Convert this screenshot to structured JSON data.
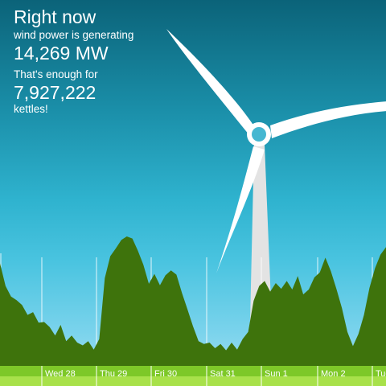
{
  "headline": "Right now",
  "generating_label": "wind power is generating",
  "generation_value": "14,269 MW",
  "kettles_intro": "That's enough for",
  "kettles_count": "7,927,222",
  "kettles_label": "kettles!",
  "colors": {
    "sky_top": "#0b6379",
    "sky_bottom": "#a8e2f3",
    "generation_area": "#3e730c",
    "ground": "#7dc828",
    "turbine": "#ffffff"
  },
  "chart_data": {
    "type": "area",
    "days": [
      "Wed 28",
      "Thu 29",
      "Fri 30",
      "Sat 31",
      "Sun 1",
      "Mon 2",
      "Tue"
    ],
    "unit": "MW",
    "ylim": [
      0,
      25000
    ],
    "series": [
      {
        "values": [
          14500,
          11300,
          9800,
          9300,
          8600,
          7200,
          7600,
          6100,
          6200,
          5500,
          4300,
          5800,
          3500,
          4300,
          3300,
          2900,
          3500,
          2300,
          3800,
          12400,
          15500,
          16600,
          17800,
          18300,
          18000,
          16300,
          14300,
          11600,
          13000,
          11400,
          12800,
          13500,
          12900,
          10300,
          8000,
          5600,
          3500,
          3100,
          3300,
          2500,
          3100,
          2200,
          3300,
          2300,
          3800,
          4800,
          9200,
          11300,
          12000,
          10500,
          11700,
          10900,
          12000,
          10800,
          12700,
          10100,
          10800,
          12500,
          13200,
          15300,
          13400,
          10900,
          8200,
          4800,
          2800,
          4500,
          7200,
          11000,
          13800,
          15700,
          16800
        ]
      }
    ]
  }
}
